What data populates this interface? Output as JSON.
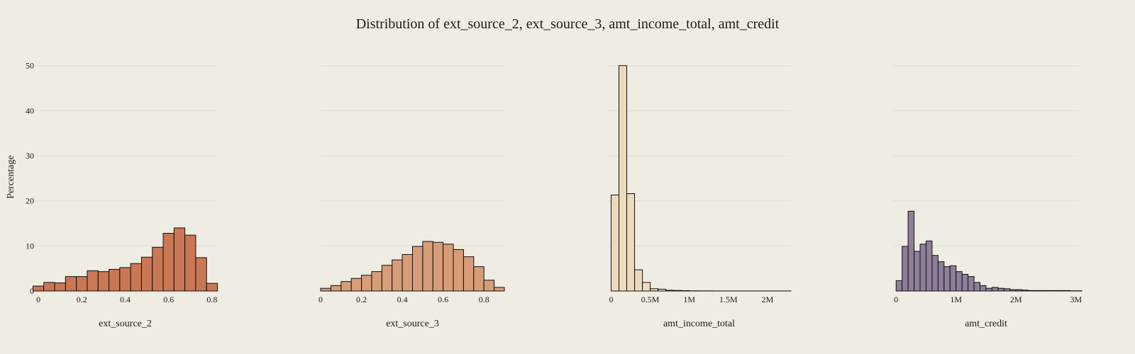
{
  "chart_data": {
    "title": "Distribution of ext_source_2, ext_source_3, amt_income_total, amt_credit",
    "ylabel": "Percentage",
    "y_ticks": [
      0,
      10,
      20,
      30,
      40,
      50
    ],
    "ylim": [
      0,
      52
    ],
    "grid": "horizontal",
    "colors": {
      "background": "#efece3",
      "grid": "#e3ded2",
      "outline": "#111111"
    },
    "panels": [
      {
        "type": "bar",
        "xlabel": "ext_source_2",
        "xlim": [
          -0.02,
          0.82
        ],
        "bin_width": 0.05,
        "bin_start": -0.025,
        "x_ticks": [
          0,
          0.2,
          0.4,
          0.6,
          0.8
        ],
        "x_tick_labels": [
          "0",
          "0.2",
          "0.4",
          "0.6",
          "0.8"
        ],
        "color": "#c97755",
        "values": [
          1.1,
          1.9,
          1.8,
          3.2,
          3.2,
          4.5,
          4.3,
          4.8,
          5.2,
          6.1,
          7.5,
          9.7,
          12.8,
          14.0,
          12.4,
          7.4,
          1.7
        ]
      },
      {
        "type": "bar",
        "xlabel": "ext_source_3",
        "xlim": [
          0,
          0.9
        ],
        "bin_width": 0.05,
        "bin_start": 0,
        "x_ticks": [
          0,
          0.2,
          0.4,
          0.6,
          0.8
        ],
        "x_tick_labels": [
          "0",
          "0.2",
          "0.4",
          "0.6",
          "0.8"
        ],
        "color": "#d69d78",
        "values": [
          0.6,
          1.2,
          2.1,
          2.8,
          3.5,
          4.3,
          5.7,
          6.9,
          8.1,
          9.9,
          11.0,
          10.8,
          10.4,
          9.2,
          7.6,
          5.4,
          2.4,
          0.8
        ]
      },
      {
        "type": "bar",
        "xlabel": "amt_income_total",
        "xlim": [
          -50000,
          2300000
        ],
        "bin_width": 100000,
        "bin_start": 0,
        "x_ticks": [
          0,
          500000,
          1000000,
          1500000,
          2000000
        ],
        "x_tick_labels": [
          "0",
          "0.5M",
          "1M",
          "1.5M",
          "2M"
        ],
        "color": "#ecdabb",
        "values": [
          21.3,
          50.0,
          21.6,
          4.7,
          1.9,
          0.5,
          0.4,
          0.15,
          0.12,
          0.08,
          0.04,
          0.03,
          0.03,
          0.02,
          0.01,
          0.01,
          0.01,
          0.01,
          0.01,
          0.01,
          0.01,
          0.01,
          0.01
        ]
      },
      {
        "type": "bar",
        "xlabel": "amt_credit",
        "xlim": [
          -50000,
          3050000
        ],
        "bin_width": 100000,
        "bin_start": 0,
        "x_ticks": [
          0,
          1000000,
          2000000,
          3000000
        ],
        "x_tick_labels": [
          "0",
          "1M",
          "2M",
          "3M"
        ],
        "color": "#8f7e9a",
        "values": [
          2.3,
          9.9,
          17.7,
          8.8,
          10.4,
          11.1,
          7.9,
          6.5,
          5.4,
          5.6,
          4.3,
          3.7,
          3.2,
          1.9,
          1.2,
          0.6,
          0.8,
          0.6,
          0.5,
          0.3,
          0.3,
          0.2,
          0.1,
          0.1,
          0.1,
          0.1,
          0.1,
          0.1,
          0.1,
          0.05,
          0.05
        ]
      }
    ]
  }
}
